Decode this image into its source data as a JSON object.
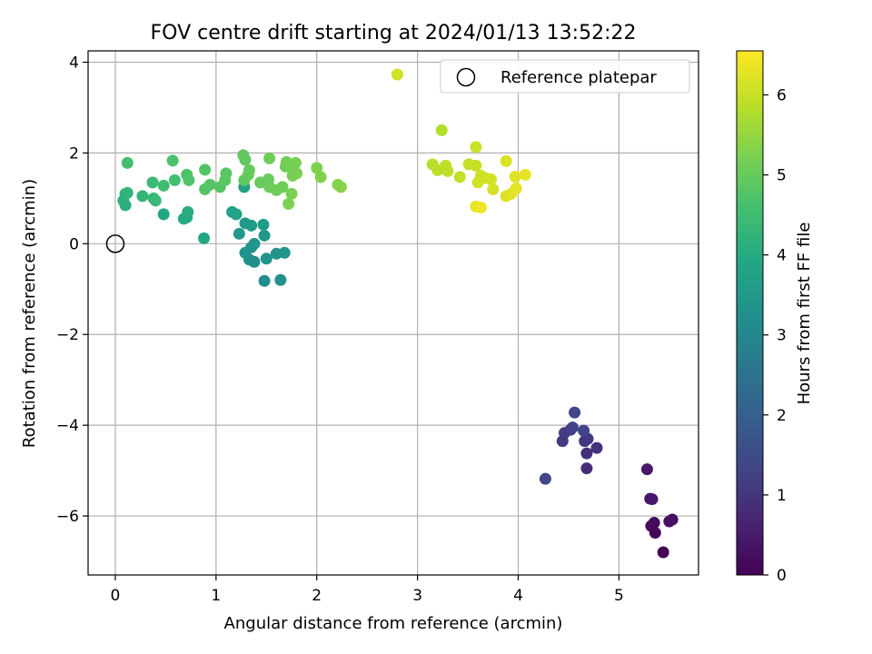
{
  "chart_data": {
    "type": "scatter",
    "title": "FOV centre drift starting at 2024/01/13 13:52:22",
    "xlabel": "Angular distance from reference (arcmin)",
    "ylabel": "Rotation from reference (arcmin)",
    "xlim": [
      -0.27,
      5.79
    ],
    "ylim": [
      -7.3,
      4.25
    ],
    "xticks": [
      0,
      1,
      2,
      3,
      4,
      5
    ],
    "yticks": [
      -6,
      -4,
      -2,
      0,
      2,
      4
    ],
    "grid": true,
    "legend": {
      "placement": "top-right",
      "entries": [
        "Reference platepar"
      ]
    },
    "reference_point": {
      "x": 0,
      "y": 0
    },
    "colorbar": {
      "label": "Hours from first FF file",
      "range": [
        0,
        6.55
      ],
      "ticks": [
        0,
        1,
        2,
        3,
        4,
        5,
        6
      ],
      "colormap": "viridis"
    },
    "points": [
      {
        "x": 5.44,
        "y": -6.8,
        "c": 0.05
      },
      {
        "x": 5.36,
        "y": -6.37,
        "c": 0.1
      },
      {
        "x": 5.32,
        "y": -6.22,
        "c": 0.15
      },
      {
        "x": 5.35,
        "y": -6.15,
        "c": 0.2
      },
      {
        "x": 5.5,
        "y": -6.12,
        "c": 0.25
      },
      {
        "x": 5.53,
        "y": -6.08,
        "c": 0.3
      },
      {
        "x": 5.31,
        "y": -5.62,
        "c": 0.35
      },
      {
        "x": 5.33,
        "y": -5.63,
        "c": 0.4
      },
      {
        "x": 5.28,
        "y": -4.97,
        "c": 0.45
      },
      {
        "x": 4.68,
        "y": -4.95,
        "c": 0.85
      },
      {
        "x": 4.68,
        "y": -4.62,
        "c": 0.9
      },
      {
        "x": 4.78,
        "y": -4.5,
        "c": 0.95
      },
      {
        "x": 4.66,
        "y": -4.35,
        "c": 1.0
      },
      {
        "x": 4.69,
        "y": -4.3,
        "c": 1.05
      },
      {
        "x": 4.44,
        "y": -4.35,
        "c": 1.1
      },
      {
        "x": 4.46,
        "y": -4.17,
        "c": 1.15
      },
      {
        "x": 4.52,
        "y": -4.1,
        "c": 1.2
      },
      {
        "x": 4.54,
        "y": -4.05,
        "c": 1.25
      },
      {
        "x": 4.65,
        "y": -4.12,
        "c": 1.3
      },
      {
        "x": 4.56,
        "y": -3.72,
        "c": 1.35
      },
      {
        "x": 4.27,
        "y": -5.18,
        "c": 1.4
      },
      {
        "x": 1.48,
        "y": -0.82,
        "c": 3.2
      },
      {
        "x": 1.64,
        "y": -0.8,
        "c": 3.22
      },
      {
        "x": 1.38,
        "y": -0.4,
        "c": 3.25
      },
      {
        "x": 1.33,
        "y": -0.35,
        "c": 3.27
      },
      {
        "x": 1.5,
        "y": -0.33,
        "c": 3.3
      },
      {
        "x": 1.29,
        "y": -0.2,
        "c": 3.32
      },
      {
        "x": 1.6,
        "y": -0.22,
        "c": 3.35
      },
      {
        "x": 1.68,
        "y": -0.2,
        "c": 3.37
      },
      {
        "x": 1.35,
        "y": -0.08,
        "c": 3.4
      },
      {
        "x": 1.38,
        "y": 0.0,
        "c": 3.42
      },
      {
        "x": 1.48,
        "y": 0.18,
        "c": 3.45
      },
      {
        "x": 1.23,
        "y": 0.22,
        "c": 3.47
      },
      {
        "x": 1.29,
        "y": 0.45,
        "c": 3.5
      },
      {
        "x": 1.35,
        "y": 0.4,
        "c": 3.55
      },
      {
        "x": 1.47,
        "y": 0.42,
        "c": 3.6
      },
      {
        "x": 1.28,
        "y": 1.25,
        "c": 3.7
      },
      {
        "x": 1.16,
        "y": 0.7,
        "c": 3.75
      },
      {
        "x": 1.2,
        "y": 0.65,
        "c": 3.8
      },
      {
        "x": 0.88,
        "y": 0.12,
        "c": 3.85
      },
      {
        "x": 0.48,
        "y": 0.65,
        "c": 3.9
      },
      {
        "x": 0.68,
        "y": 0.55,
        "c": 3.95
      },
      {
        "x": 0.71,
        "y": 0.58,
        "c": 4.0
      },
      {
        "x": 0.72,
        "y": 0.7,
        "c": 4.05
      },
      {
        "x": 0.1,
        "y": 0.85,
        "c": 4.1
      },
      {
        "x": 0.08,
        "y": 0.95,
        "c": 4.15
      },
      {
        "x": 0.1,
        "y": 1.1,
        "c": 4.2
      },
      {
        "x": 0.12,
        "y": 1.12,
        "c": 4.25
      },
      {
        "x": 0.27,
        "y": 1.05,
        "c": 4.3
      },
      {
        "x": 0.38,
        "y": 1.0,
        "c": 4.35
      },
      {
        "x": 0.4,
        "y": 0.95,
        "c": 4.4
      },
      {
        "x": 0.37,
        "y": 1.35,
        "c": 4.45
      },
      {
        "x": 0.48,
        "y": 1.28,
        "c": 4.5
      },
      {
        "x": 0.59,
        "y": 1.4,
        "c": 4.55
      },
      {
        "x": 0.12,
        "y": 1.78,
        "c": 4.6
      },
      {
        "x": 0.57,
        "y": 1.83,
        "c": 4.65
      },
      {
        "x": 0.71,
        "y": 1.52,
        "c": 4.7
      },
      {
        "x": 0.73,
        "y": 1.4,
        "c": 4.72
      },
      {
        "x": 0.89,
        "y": 1.63,
        "c": 4.75
      },
      {
        "x": 0.89,
        "y": 1.2,
        "c": 4.78
      },
      {
        "x": 0.94,
        "y": 1.3,
        "c": 4.8
      },
      {
        "x": 1.04,
        "y": 1.25,
        "c": 4.82
      },
      {
        "x": 1.1,
        "y": 1.55,
        "c": 4.85
      },
      {
        "x": 1.09,
        "y": 1.4,
        "c": 4.87
      },
      {
        "x": 1.28,
        "y": 1.4,
        "c": 4.9
      },
      {
        "x": 1.27,
        "y": 1.95,
        "c": 4.92
      },
      {
        "x": 1.29,
        "y": 1.85,
        "c": 4.94
      },
      {
        "x": 1.33,
        "y": 1.62,
        "c": 4.96
      },
      {
        "x": 1.32,
        "y": 1.52,
        "c": 4.98
      },
      {
        "x": 1.44,
        "y": 1.35,
        "c": 5.0
      },
      {
        "x": 1.52,
        "y": 1.42,
        "c": 5.02
      },
      {
        "x": 1.53,
        "y": 1.25,
        "c": 5.04
      },
      {
        "x": 1.6,
        "y": 1.18,
        "c": 5.06
      },
      {
        "x": 1.53,
        "y": 1.88,
        "c": 5.08
      },
      {
        "x": 1.66,
        "y": 1.25,
        "c": 5.1
      },
      {
        "x": 1.69,
        "y": 1.7,
        "c": 5.12
      },
      {
        "x": 1.7,
        "y": 1.8,
        "c": 5.14
      },
      {
        "x": 1.73,
        "y": 1.75,
        "c": 5.16
      },
      {
        "x": 1.76,
        "y": 1.5,
        "c": 5.18
      },
      {
        "x": 1.79,
        "y": 1.78,
        "c": 5.2
      },
      {
        "x": 1.8,
        "y": 1.55,
        "c": 5.22
      },
      {
        "x": 1.75,
        "y": 1.1,
        "c": 5.24
      },
      {
        "x": 1.72,
        "y": 0.88,
        "c": 5.26
      },
      {
        "x": 2.0,
        "y": 1.67,
        "c": 5.28
      },
      {
        "x": 2.04,
        "y": 1.47,
        "c": 5.3
      },
      {
        "x": 2.21,
        "y": 1.3,
        "c": 5.32
      },
      {
        "x": 2.24,
        "y": 1.25,
        "c": 5.34
      },
      {
        "x": 3.24,
        "y": 2.5,
        "c": 5.8
      },
      {
        "x": 3.15,
        "y": 1.75,
        "c": 5.85
      },
      {
        "x": 3.2,
        "y": 1.62,
        "c": 5.88
      },
      {
        "x": 3.28,
        "y": 1.72,
        "c": 5.9
      },
      {
        "x": 3.3,
        "y": 1.6,
        "c": 5.92
      },
      {
        "x": 3.42,
        "y": 1.47,
        "c": 5.95
      },
      {
        "x": 3.51,
        "y": 1.75,
        "c": 5.97
      },
      {
        "x": 3.58,
        "y": 1.72,
        "c": 6.0
      },
      {
        "x": 3.58,
        "y": 2.13,
        "c": 6.02
      },
      {
        "x": 3.63,
        "y": 1.5,
        "c": 6.05
      },
      {
        "x": 3.67,
        "y": 1.45,
        "c": 6.07
      },
      {
        "x": 3.6,
        "y": 1.35,
        "c": 6.1
      },
      {
        "x": 3.73,
        "y": 1.42,
        "c": 6.12
      },
      {
        "x": 3.75,
        "y": 1.2,
        "c": 6.15
      },
      {
        "x": 3.88,
        "y": 1.82,
        "c": 6.18
      },
      {
        "x": 3.88,
        "y": 1.05,
        "c": 6.2
      },
      {
        "x": 3.93,
        "y": 1.1,
        "c": 6.22
      },
      {
        "x": 3.97,
        "y": 1.48,
        "c": 6.25
      },
      {
        "x": 3.98,
        "y": 1.22,
        "c": 6.28
      },
      {
        "x": 4.07,
        "y": 1.52,
        "c": 6.3
      },
      {
        "x": 3.58,
        "y": 0.82,
        "c": 6.35
      },
      {
        "x": 3.63,
        "y": 0.8,
        "c": 6.4
      },
      {
        "x": 2.8,
        "y": 3.73,
        "c": 6.1
      }
    ]
  }
}
